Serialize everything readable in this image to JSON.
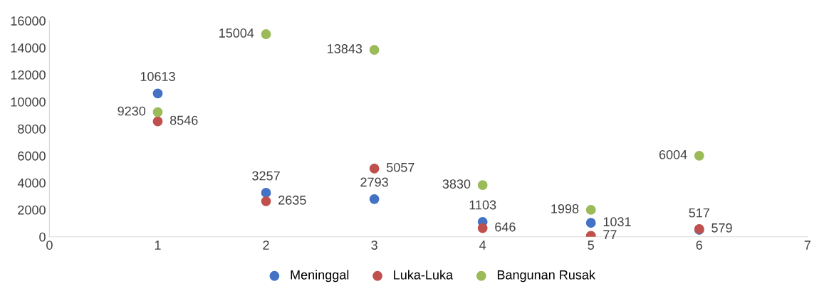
{
  "chart_data": {
    "type": "scatter",
    "x": [
      1,
      2,
      3,
      4,
      5,
      6
    ],
    "series": [
      {
        "name": "Meninggal",
        "color": "#4472c4",
        "values": [
          10613,
          3257,
          2793,
          1103,
          1031,
          517
        ]
      },
      {
        "name": "Luka-Luka",
        "color": "#c0504d",
        "values": [
          8546,
          2635,
          5057,
          646,
          77,
          579
        ]
      },
      {
        "name": "Bangunan Rusak",
        "color": "#9bbb59",
        "values": [
          9230,
          15004,
          13843,
          3830,
          1998,
          6004
        ]
      }
    ],
    "xlim": [
      0,
      7
    ],
    "xticks": [
      0,
      1,
      2,
      3,
      4,
      5,
      6,
      7
    ],
    "ylim": [
      0,
      16000
    ],
    "yticks": [
      0,
      2000,
      4000,
      6000,
      8000,
      10000,
      12000,
      14000,
      16000
    ],
    "data_labels": true,
    "marker": "circle",
    "grid": false,
    "legend": "bottom"
  }
}
